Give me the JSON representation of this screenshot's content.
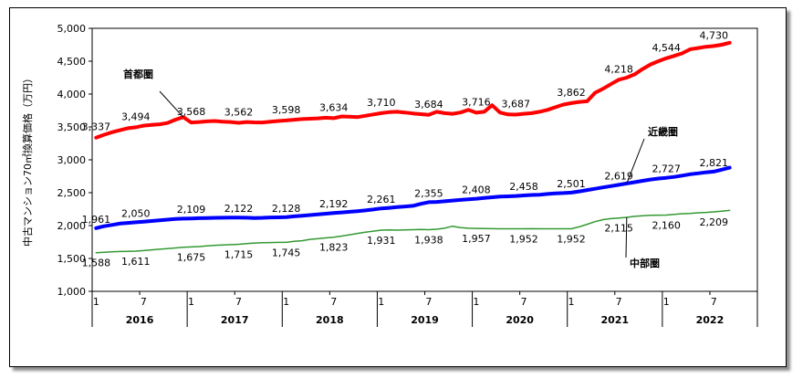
{
  "chart_data": {
    "type": "line",
    "ylabel": "中古マンション70㎡換算価格（万円）",
    "ylim": [
      1000,
      5000
    ],
    "yticks": [
      "1,000",
      "1,500",
      "2,000",
      "2,500",
      "3,000",
      "3,500",
      "4,000",
      "4,500",
      "5,000"
    ],
    "month_ticks": [
      "1",
      "7"
    ],
    "years": [
      "2016",
      "2017",
      "2018",
      "2019",
      "2020",
      "2021",
      "2022"
    ],
    "grid": false,
    "colors": {
      "首都圏": "#ff0000",
      "近畿圏": "#0000ff",
      "中部圏": "#339933"
    },
    "series": [
      {
        "name": "首都圏",
        "values": [
          3337,
          3380,
          3420,
          3450,
          3480,
          3494,
          3520,
          3530,
          3540,
          3560,
          3610,
          3650,
          3568,
          3575,
          3585,
          3590,
          3580,
          3575,
          3562,
          3575,
          3570,
          3568,
          3580,
          3590,
          3598,
          3610,
          3620,
          3625,
          3630,
          3640,
          3634,
          3660,
          3655,
          3650,
          3670,
          3690,
          3710,
          3725,
          3730,
          3720,
          3705,
          3695,
          3684,
          3730,
          3710,
          3700,
          3720,
          3760,
          3716,
          3730,
          3830,
          3720,
          3690,
          3687,
          3700,
          3710,
          3730,
          3760,
          3800,
          3840,
          3862,
          3880,
          3890,
          4020,
          4080,
          4150,
          4218,
          4250,
          4300,
          4380,
          4450,
          4500,
          4544,
          4580,
          4620,
          4680,
          4700,
          4720,
          4730,
          4750,
          4780
        ],
        "labels": [
          {
            "i": 0,
            "text": "3,337"
          },
          {
            "i": 5,
            "text": "3,494"
          },
          {
            "i": 12,
            "text": "3,568"
          },
          {
            "i": 18,
            "text": "3,562"
          },
          {
            "i": 24,
            "text": "3,598"
          },
          {
            "i": 30,
            "text": "3,634"
          },
          {
            "i": 36,
            "text": "3,710"
          },
          {
            "i": 42,
            "text": "3,684"
          },
          {
            "i": 48,
            "text": "3,716"
          },
          {
            "i": 53,
            "text": "3,687"
          },
          {
            "i": 60,
            "text": "3,862"
          },
          {
            "i": 66,
            "text": "4,218"
          },
          {
            "i": 72,
            "text": "4,544"
          },
          {
            "i": 78,
            "text": "4,730"
          }
        ]
      },
      {
        "name": "近畿圏",
        "values": [
          1961,
          1990,
          2010,
          2030,
          2040,
          2050,
          2060,
          2070,
          2080,
          2090,
          2100,
          2105,
          2109,
          2112,
          2115,
          2118,
          2120,
          2121,
          2122,
          2120,
          2115,
          2118,
          2123,
          2125,
          2128,
          2140,
          2150,
          2160,
          2170,
          2180,
          2192,
          2200,
          2210,
          2220,
          2230,
          2245,
          2261,
          2270,
          2280,
          2290,
          2300,
          2330,
          2355,
          2360,
          2370,
          2380,
          2390,
          2400,
          2408,
          2420,
          2430,
          2440,
          2445,
          2450,
          2458,
          2465,
          2470,
          2480,
          2490,
          2495,
          2501,
          2520,
          2540,
          2560,
          2580,
          2600,
          2619,
          2640,
          2660,
          2680,
          2700,
          2715,
          2727,
          2740,
          2760,
          2780,
          2795,
          2810,
          2821,
          2850,
          2880
        ],
        "labels": [
          {
            "i": 0,
            "text": "1,961"
          },
          {
            "i": 5,
            "text": "2,050"
          },
          {
            "i": 12,
            "text": "2,109"
          },
          {
            "i": 18,
            "text": "2,122"
          },
          {
            "i": 24,
            "text": "2,128"
          },
          {
            "i": 30,
            "text": "2,192"
          },
          {
            "i": 36,
            "text": "2,261"
          },
          {
            "i": 42,
            "text": "2,355"
          },
          {
            "i": 48,
            "text": "2,408"
          },
          {
            "i": 54,
            "text": "2,458"
          },
          {
            "i": 60,
            "text": "2,501"
          },
          {
            "i": 66,
            "text": "2,619"
          },
          {
            "i": 72,
            "text": "2,727"
          },
          {
            "i": 78,
            "text": "2,821"
          }
        ]
      },
      {
        "name": "中部圏",
        "values": [
          1588,
          1595,
          1600,
          1605,
          1608,
          1611,
          1620,
          1630,
          1640,
          1650,
          1660,
          1670,
          1675,
          1680,
          1690,
          1700,
          1705,
          1710,
          1715,
          1725,
          1735,
          1740,
          1742,
          1744,
          1745,
          1760,
          1770,
          1790,
          1800,
          1812,
          1823,
          1840,
          1860,
          1880,
          1900,
          1915,
          1931,
          1935,
          1930,
          1935,
          1938,
          1940,
          1938,
          1945,
          1960,
          1990,
          1970,
          1960,
          1957,
          1955,
          1953,
          1952,
          1952,
          1952,
          1952,
          1953,
          1952,
          1952,
          1952,
          1952,
          1952,
          1980,
          2020,
          2060,
          2090,
          2105,
          2115,
          2125,
          2140,
          2150,
          2155,
          2158,
          2160,
          2170,
          2180,
          2185,
          2195,
          2200,
          2209,
          2220,
          2230
        ],
        "labels": [
          {
            "i": 0,
            "text": "1,588"
          },
          {
            "i": 5,
            "text": "1,611"
          },
          {
            "i": 12,
            "text": "1,675"
          },
          {
            "i": 18,
            "text": "1,715"
          },
          {
            "i": 24,
            "text": "1,745"
          },
          {
            "i": 30,
            "text": "1,823"
          },
          {
            "i": 36,
            "text": "1,931"
          },
          {
            "i": 42,
            "text": "1,938"
          },
          {
            "i": 48,
            "text": "1,957"
          },
          {
            "i": 54,
            "text": "1,952"
          },
          {
            "i": 60,
            "text": "1,952"
          },
          {
            "i": 66,
            "text": "2,115"
          },
          {
            "i": 72,
            "text": "2,160"
          },
          {
            "i": 78,
            "text": "2,209"
          }
        ]
      }
    ]
  }
}
